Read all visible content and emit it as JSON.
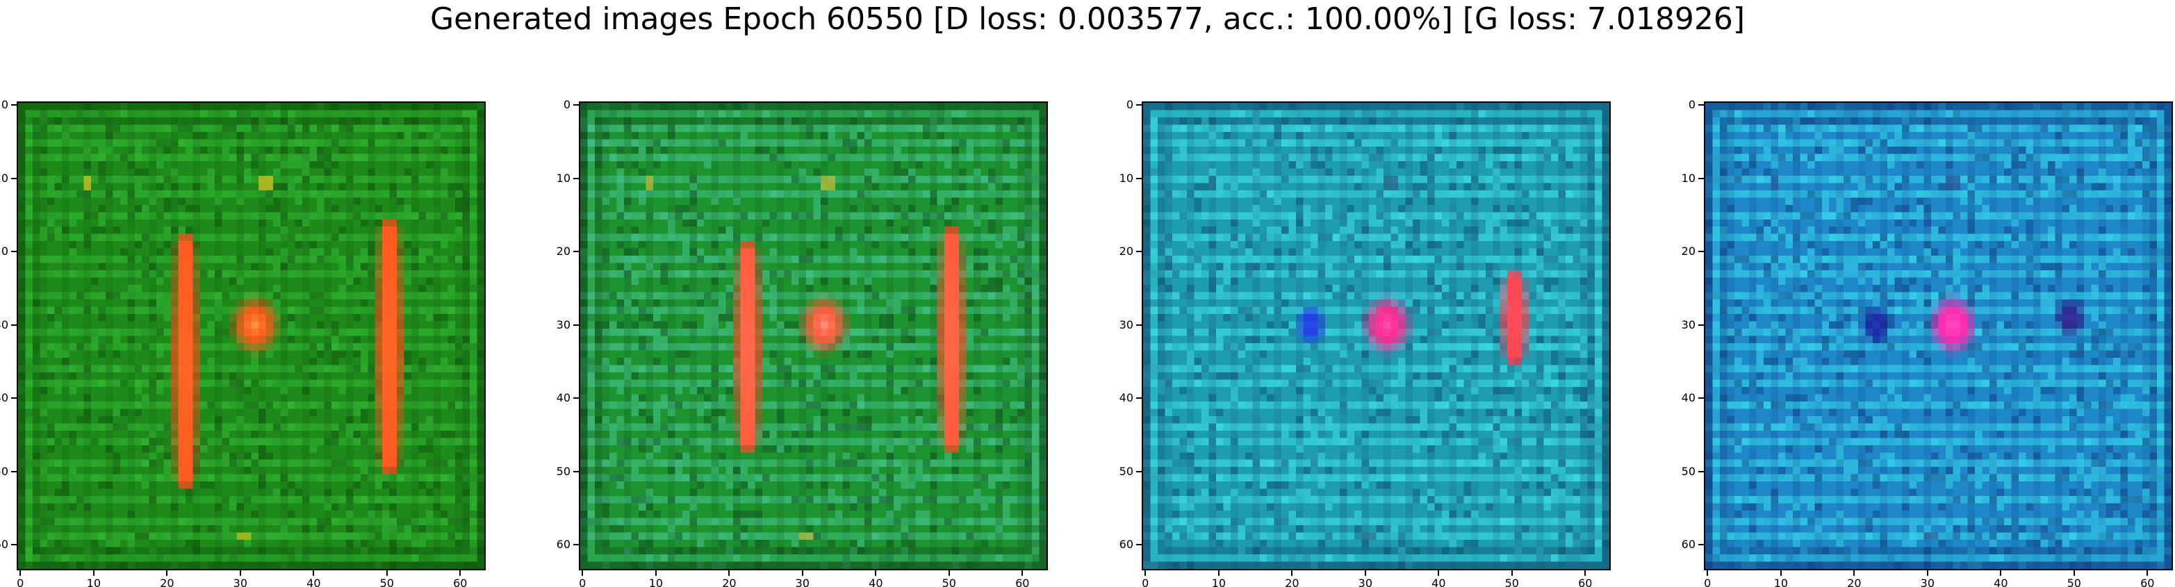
{
  "figure": {
    "title": "Generated images Epoch 60550 [D loss: 0.003577, acc.: 100.00%] [G loss: 7.018926]"
  },
  "axis": {
    "image_size": 64,
    "x_ticks": [
      "0",
      "10",
      "20",
      "30",
      "40",
      "50",
      "60"
    ],
    "y_ticks": [
      "0",
      "10",
      "20",
      "30",
      "40",
      "50",
      "60"
    ]
  },
  "panels": [
    {
      "id": "sample-1",
      "base_color": "#1d8a1a",
      "stripe_color": "#33b833",
      "dark_color": "#0f4d0c",
      "speck_color": "#c8c020",
      "blobs": [
        {
          "shape": "bar",
          "col": 22.5,
          "row_start": 19,
          "row_end": 51,
          "color": "#ff4a1a",
          "core": "#ffb040"
        },
        {
          "shape": "oval",
          "col": 32,
          "row": 30,
          "color": "#ff5a1a",
          "core": "#ffc860"
        },
        {
          "shape": "bar",
          "col": 50.5,
          "row_start": 17,
          "row_end": 49,
          "color": "#ff4a1a",
          "core": "#ffb040"
        }
      ]
    },
    {
      "id": "sample-2",
      "base_color": "#1e9430",
      "stripe_color": "#45c48c",
      "dark_color": "#0d4a1c",
      "speck_color": "#b8b838",
      "blobs": [
        {
          "shape": "bar",
          "col": 22.5,
          "row_start": 20,
          "row_end": 46,
          "color": "#ff4a2a",
          "core": "#ffc0a0"
        },
        {
          "shape": "oval",
          "col": 33,
          "row": 30,
          "color": "#ff5a3a",
          "core": "#ffc0b0"
        },
        {
          "shape": "bar",
          "col": 50.5,
          "row_start": 18,
          "row_end": 46,
          "color": "#ff4a2a",
          "core": "#ffb090"
        }
      ]
    },
    {
      "id": "sample-3",
      "base_color": "#1e9cb0",
      "stripe_color": "#3ee0e8",
      "dark_color": "#0f4a6a",
      "speck_color": "#2a6a8a",
      "blobs": [
        {
          "shape": "dot",
          "col": 22.5,
          "row": 30,
          "color": "#2040e0",
          "core": "#4060ff"
        },
        {
          "shape": "oval",
          "col": 33,
          "row": 30,
          "color": "#ff2a90",
          "core": "#ff70c0"
        },
        {
          "shape": "bar",
          "col": 50.5,
          "row_start": 24,
          "row_end": 34,
          "color": "#ff3a4a",
          "core": "#ff8080"
        }
      ]
    },
    {
      "id": "sample-4",
      "base_color": "#1e88c8",
      "stripe_color": "#38d8ee",
      "dark_color": "#0f3a7a",
      "speck_color": "#2a5a9a",
      "blobs": [
        {
          "shape": "dot",
          "col": 23,
          "row": 30,
          "color": "#1a2aa0",
          "core": "#2840d0"
        },
        {
          "shape": "oval",
          "col": 33.5,
          "row": 30,
          "color": "#ff2ab0",
          "core": "#ff70d0"
        },
        {
          "shape": "dot",
          "col": 49.5,
          "row": 29,
          "color": "#2a2a90",
          "core": "#5040c0"
        }
      ]
    }
  ]
}
